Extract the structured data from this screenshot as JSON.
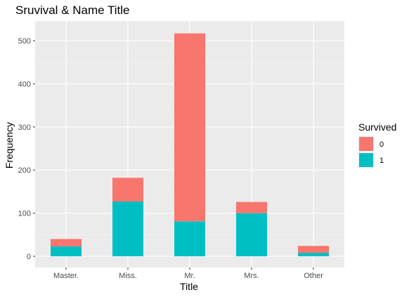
{
  "chart_data": {
    "type": "bar",
    "stacked": true,
    "title": "Sruvival & Name Title",
    "xlabel": "Title",
    "ylabel": "Frequency",
    "categories": [
      "Master.",
      "Miss.",
      "Mr.",
      "Mrs.",
      "Other"
    ],
    "series": [
      {
        "name": "0",
        "color": "#F8766D",
        "values": [
          17,
          55,
          436,
          26,
          16
        ]
      },
      {
        "name": "1",
        "color": "#00BFC4",
        "values": [
          23,
          127,
          81,
          100,
          8
        ]
      }
    ],
    "ylim": [
      0,
      540
    ],
    "yticks": [
      0,
      100,
      200,
      300,
      400,
      500
    ],
    "grid": true,
    "legend": {
      "title": "Survived",
      "position": "right",
      "labels": [
        "0",
        "1"
      ]
    },
    "colors": {
      "panel_bg": "#EBEBEB",
      "grid_major": "#FFFFFF",
      "grid_minor": "#F2F2F2"
    }
  }
}
